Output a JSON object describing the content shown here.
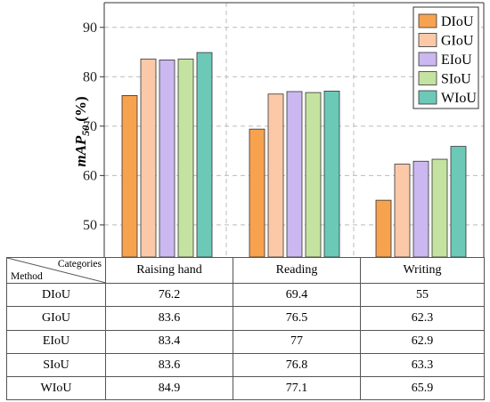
{
  "chart_data": {
    "type": "bar",
    "categories": [
      "Raising hand",
      "Reading",
      "Writing"
    ],
    "series": [
      {
        "name": "DIoU",
        "color": "#F7A24F",
        "values": [
          76.2,
          69.4,
          55
        ]
      },
      {
        "name": "GIoU",
        "color": "#FBC9A8",
        "values": [
          83.6,
          76.5,
          62.3
        ]
      },
      {
        "name": "EIoU",
        "color": "#CBB8F0",
        "values": [
          83.4,
          77,
          62.9
        ]
      },
      {
        "name": "SIoU",
        "color": "#C5E3A0",
        "values": [
          83.6,
          76.8,
          63.3
        ]
      },
      {
        "name": "WIoU",
        "color": "#6CC9B8",
        "values": [
          84.9,
          77.1,
          65.9
        ]
      }
    ],
    "ylabel": "mAP",
    "ylabel_sub": "50",
    "ylabel_unit": "(%)",
    "yticks": [
      "50",
      "60",
      "70",
      "80",
      "90"
    ],
    "ylim": [
      43.5,
      95
    ],
    "grid": true,
    "legend_position": "top-right"
  },
  "table": {
    "corner_top": "Categories",
    "corner_bottom": "Method",
    "columns": [
      "Raising hand",
      "Reading",
      "Writing"
    ],
    "rows": [
      {
        "method": "DIoU",
        "values": [
          "76.2",
          "69.4",
          "55"
        ]
      },
      {
        "method": "GIoU",
        "values": [
          "83.6",
          "76.5",
          "62.3"
        ]
      },
      {
        "method": "EIoU",
        "values": [
          "83.4",
          "77",
          "62.9"
        ]
      },
      {
        "method": "SIoU",
        "values": [
          "83.6",
          "76.8",
          "63.3"
        ]
      },
      {
        "method": "WIoU",
        "values": [
          "84.9",
          "77.1",
          "65.9"
        ]
      }
    ]
  }
}
